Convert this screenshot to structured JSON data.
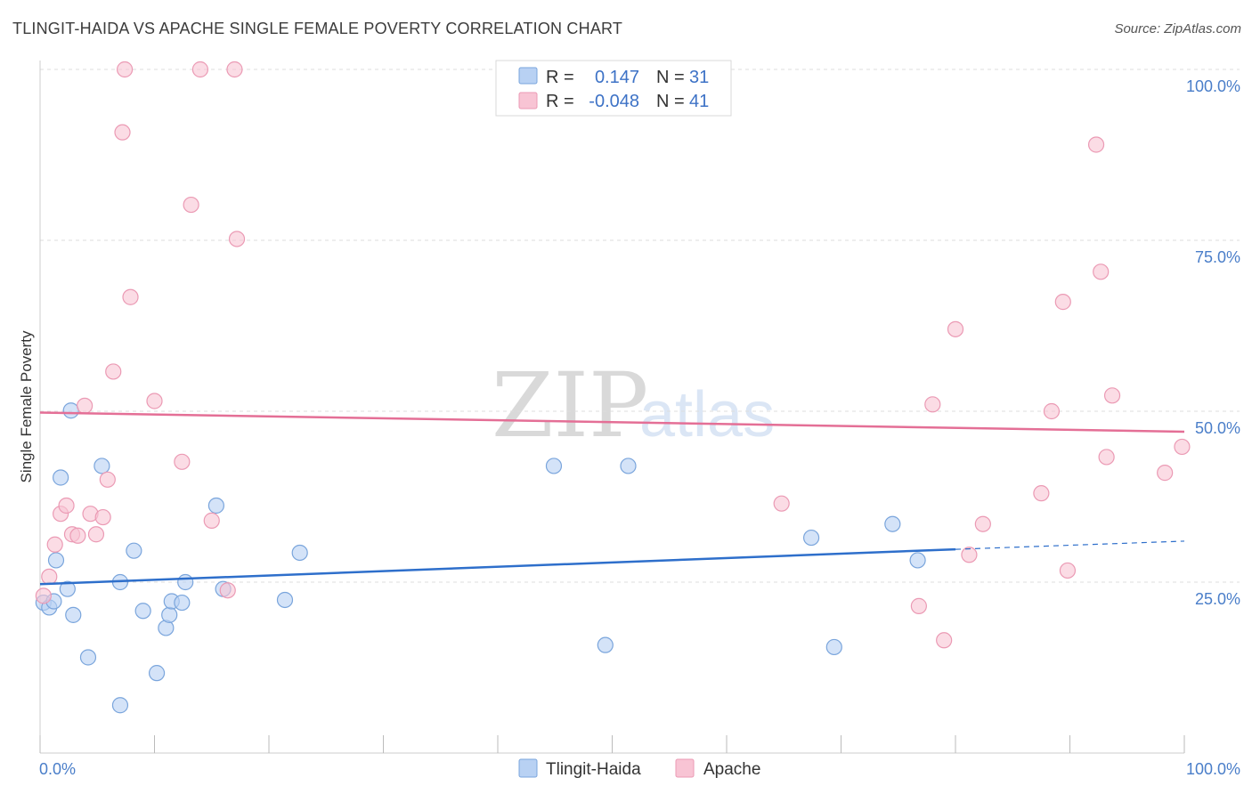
{
  "chart_data": {
    "type": "scatter",
    "title": "TLINGIT-HAIDA VS APACHE SINGLE FEMALE POVERTY CORRELATION CHART",
    "source": "Source: ZipAtlas.com",
    "ylabel": "Single Female Poverty",
    "xlabel": "",
    "xlim": [
      0,
      100
    ],
    "ylim": [
      0,
      100
    ],
    "x_tick_labels": [
      "0.0%",
      "100.0%"
    ],
    "y_tick_values": [
      25,
      50,
      75,
      100
    ],
    "y_tick_labels": [
      "25.0%",
      "50.0%",
      "75.0%",
      "100.0%"
    ],
    "legend": {
      "r_label": "R =",
      "n_label": "N =",
      "entries": [
        {
          "name": "Tlingit-Haida",
          "r": "0.147",
          "n": "31"
        },
        {
          "name": "Apache",
          "r": "-0.048",
          "n": "41"
        }
      ]
    },
    "watermark": {
      "zip": "ZIP",
      "atlas": "atlas"
    },
    "colors": {
      "tlingit_fill": "#b8d1f3",
      "tlingit_stroke": "#7aa5dc",
      "tlingit_line": "#2e6fcb",
      "apache_fill": "#f8c4d4",
      "apache_stroke": "#eb9ab4",
      "apache_line": "#e46f96",
      "grid": "#dddddd",
      "tick_text": "#4a7ec9"
    },
    "series": [
      {
        "name": "Tlingit-Haida",
        "trend": {
          "x0": 0,
          "y0": 24.7,
          "x1": 80,
          "y1": 29.8,
          "dash_to_x": 100,
          "dash_to_y": 31.0
        },
        "points": [
          {
            "x": 0.3,
            "y": 22.0
          },
          {
            "x": 0.8,
            "y": 21.3
          },
          {
            "x": 1.2,
            "y": 22.2
          },
          {
            "x": 1.4,
            "y": 28.2
          },
          {
            "x": 1.8,
            "y": 40.3
          },
          {
            "x": 2.4,
            "y": 24.0
          },
          {
            "x": 2.7,
            "y": 50.1
          },
          {
            "x": 2.9,
            "y": 20.2
          },
          {
            "x": 4.2,
            "y": 14.0
          },
          {
            "x": 5.4,
            "y": 42.0
          },
          {
            "x": 7.0,
            "y": 25.0
          },
          {
            "x": 7.0,
            "y": 7.0
          },
          {
            "x": 8.2,
            "y": 29.6
          },
          {
            "x": 9.0,
            "y": 20.8
          },
          {
            "x": 10.2,
            "y": 11.7
          },
          {
            "x": 11.0,
            "y": 18.3
          },
          {
            "x": 11.3,
            "y": 20.2
          },
          {
            "x": 11.5,
            "y": 22.2
          },
          {
            "x": 12.4,
            "y": 22.0
          },
          {
            "x": 12.7,
            "y": 25.0
          },
          {
            "x": 15.4,
            "y": 36.2
          },
          {
            "x": 16.0,
            "y": 24.0
          },
          {
            "x": 21.4,
            "y": 22.4
          },
          {
            "x": 22.7,
            "y": 29.3
          },
          {
            "x": 44.9,
            "y": 42.0
          },
          {
            "x": 49.4,
            "y": 15.8
          },
          {
            "x": 51.4,
            "y": 42.0
          },
          {
            "x": 67.4,
            "y": 31.5
          },
          {
            "x": 69.4,
            "y": 15.5
          },
          {
            "x": 74.5,
            "y": 33.5
          },
          {
            "x": 76.7,
            "y": 28.2
          }
        ]
      },
      {
        "name": "Apache",
        "trend": {
          "x0": 0,
          "y0": 49.8,
          "x1": 100,
          "y1": 47.0
        },
        "points": [
          {
            "x": 0.3,
            "y": 23.0
          },
          {
            "x": 0.8,
            "y": 25.8
          },
          {
            "x": 1.3,
            "y": 30.5
          },
          {
            "x": 1.8,
            "y": 35.0
          },
          {
            "x": 2.3,
            "y": 36.2
          },
          {
            "x": 2.8,
            "y": 32.0
          },
          {
            "x": 3.3,
            "y": 31.8
          },
          {
            "x": 3.9,
            "y": 50.8
          },
          {
            "x": 4.4,
            "y": 35.0
          },
          {
            "x": 4.9,
            "y": 32.0
          },
          {
            "x": 5.5,
            "y": 34.5
          },
          {
            "x": 5.9,
            "y": 40.0
          },
          {
            "x": 6.4,
            "y": 55.8
          },
          {
            "x": 7.2,
            "y": 90.8
          },
          {
            "x": 7.4,
            "y": 100.0
          },
          {
            "x": 7.9,
            "y": 66.7
          },
          {
            "x": 10.0,
            "y": 51.5
          },
          {
            "x": 12.4,
            "y": 42.6
          },
          {
            "x": 13.2,
            "y": 80.2
          },
          {
            "x": 14.0,
            "y": 100.0
          },
          {
            "x": 15.0,
            "y": 34.0
          },
          {
            "x": 16.4,
            "y": 23.8
          },
          {
            "x": 17.0,
            "y": 100.0
          },
          {
            "x": 17.2,
            "y": 75.2
          },
          {
            "x": 64.8,
            "y": 36.5
          },
          {
            "x": 76.8,
            "y": 21.5
          },
          {
            "x": 78.0,
            "y": 51.0
          },
          {
            "x": 79.0,
            "y": 16.5
          },
          {
            "x": 80.0,
            "y": 62.0
          },
          {
            "x": 81.2,
            "y": 29.0
          },
          {
            "x": 82.4,
            "y": 33.5
          },
          {
            "x": 87.5,
            "y": 38.0
          },
          {
            "x": 88.4,
            "y": 50.0
          },
          {
            "x": 89.4,
            "y": 66.0
          },
          {
            "x": 89.8,
            "y": 26.7
          },
          {
            "x": 92.3,
            "y": 89.0
          },
          {
            "x": 92.7,
            "y": 70.4
          },
          {
            "x": 93.2,
            "y": 43.3
          },
          {
            "x": 93.7,
            "y": 52.3
          },
          {
            "x": 98.3,
            "y": 41.0
          },
          {
            "x": 99.8,
            "y": 44.8
          }
        ]
      }
    ]
  }
}
